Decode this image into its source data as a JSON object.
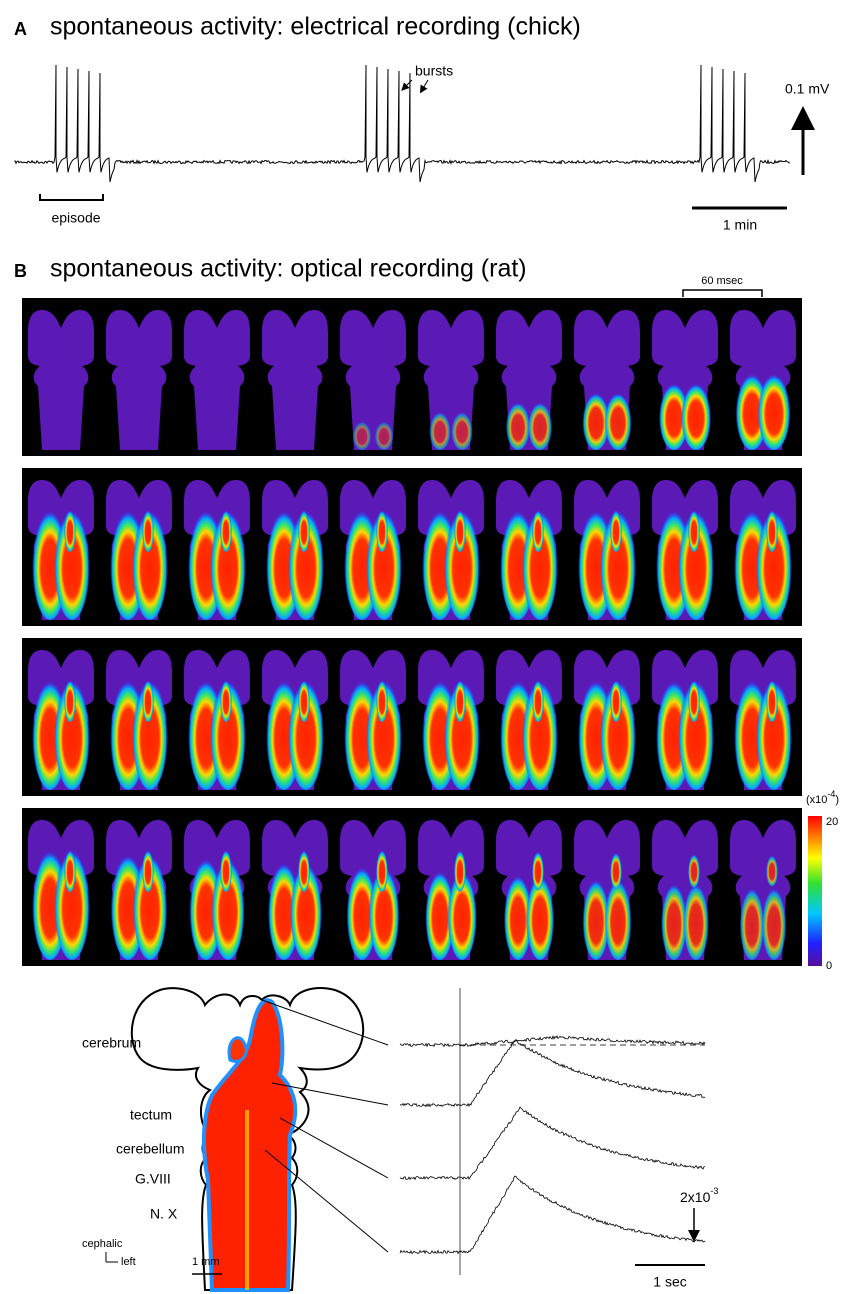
{
  "panel_a": {
    "letter": "A",
    "title": "spontaneous activity: electrical recording (chick)",
    "bursts_label": "bursts",
    "episode_label": "episode",
    "voltage_scale": "0.1 mV",
    "time_scale": "1 min"
  },
  "panel_b": {
    "letter": "B",
    "title": "spontaneous activity: optical recording (rat)",
    "frame_interval": "60 msec",
    "colorbar": {
      "unit_base": "(x10",
      "unit_exponent": "-4",
      "unit_close": ")",
      "max_label": "20",
      "min_label": "0"
    },
    "regions": [
      "cerebrum",
      "tectum",
      "cerebellum",
      "G.VIII",
      "N. X"
    ],
    "orientation": {
      "up": "cephalic",
      "side": "left"
    },
    "length_scale": "1 mm",
    "signal_scale": {
      "base": "2x10",
      "exponent": "-3"
    },
    "time_scale": "1 sec"
  }
}
